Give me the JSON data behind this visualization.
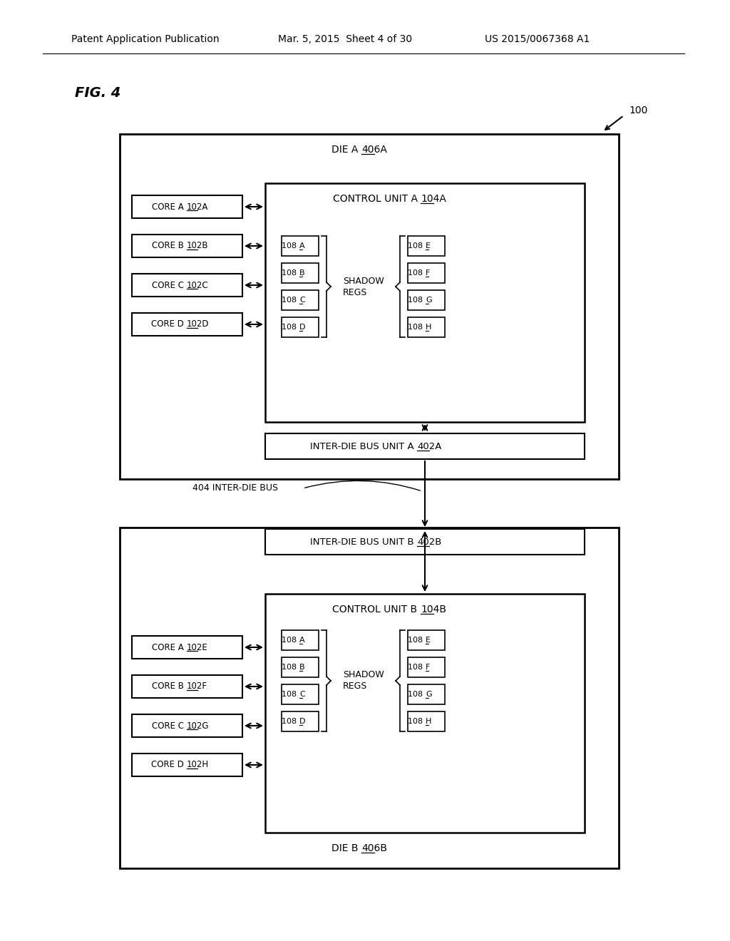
{
  "header_left": "Patent Application Publication",
  "header_mid": "Mar. 5, 2015  Sheet 4 of 30",
  "header_right": "US 2015/0067368 A1",
  "fig_label": "FIG. 4",
  "ref_100": "100",
  "die_a_label": "DIE A",
  "die_a_ref": "406A",
  "die_b_label": "DIE B",
  "die_b_ref": "406B",
  "control_unit_a": "CONTROL UNIT A",
  "control_unit_a_ref": "104A",
  "control_unit_b": "CONTROL UNIT B",
  "control_unit_b_ref": "104B",
  "inter_die_bus_a": "INTER-DIE BUS UNIT A",
  "inter_die_bus_a_ref": "402A",
  "inter_die_bus_b": "INTER-DIE BUS UNIT B",
  "inter_die_bus_b_ref": "402B",
  "inter_die_bus_label": "404 INTER-DIE BUS",
  "shadow_regs": "SHADOW\nREGS",
  "cores_a": [
    "CORE A",
    "102A",
    "CORE B",
    "102B",
    "CORE C",
    "102C",
    "CORE D",
    "102D"
  ],
  "cores_b": [
    "CORE A",
    "102E",
    "CORE B",
    "102F",
    "CORE C",
    "102G",
    "CORE D",
    "102H"
  ],
  "regs_left": [
    "108A",
    "108B",
    "108C",
    "108D"
  ],
  "regs_right": [
    "108E",
    "108F",
    "108G",
    "108H"
  ],
  "background_color": "#ffffff",
  "box_color": "#000000",
  "text_color": "#000000"
}
